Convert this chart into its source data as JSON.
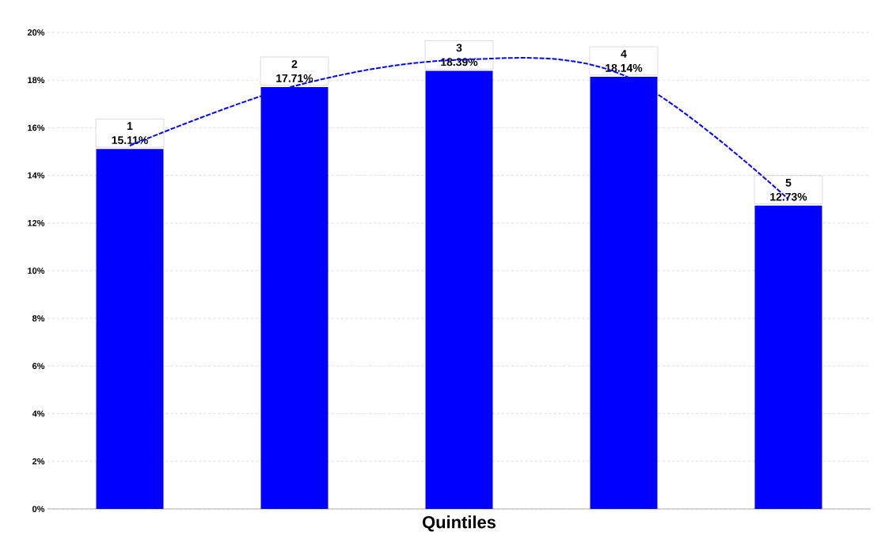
{
  "chart_data": {
    "type": "bar",
    "xlabel": "Quintiles",
    "categories": [
      "1",
      "2",
      "3",
      "4",
      "5"
    ],
    "series": [
      {
        "color": "#0000ff",
        "values": [
          15.11,
          17.71,
          18.39,
          18.14,
          12.73
        ],
        "value_labels": [
          "15.11%",
          "17.71%",
          "18.39%",
          "18.14%",
          "12.73%"
        ]
      },
      {
        "type": "line",
        "color": "#0000ff",
        "line_style": "dashed",
        "values": [
          15.25,
          17.75,
          18.85,
          18.2,
          13.0
        ]
      }
    ],
    "ylim": [
      0,
      20
    ],
    "yticks": [
      {
        "value": 0,
        "label": "0%"
      },
      {
        "value": 2,
        "label": "2%"
      },
      {
        "value": 4,
        "label": "4%"
      },
      {
        "value": 6,
        "label": "6%"
      },
      {
        "value": 8,
        "label": "8%"
      },
      {
        "value": 10,
        "label": "10%"
      },
      {
        "value": 12,
        "label": "12%"
      },
      {
        "value": 14,
        "label": "14%"
      },
      {
        "value": 16,
        "label": "16%"
      },
      {
        "value": 18,
        "label": "18%"
      },
      {
        "value": 20,
        "label": "20%"
      }
    ],
    "grid": "y",
    "tick_labels": "y"
  }
}
